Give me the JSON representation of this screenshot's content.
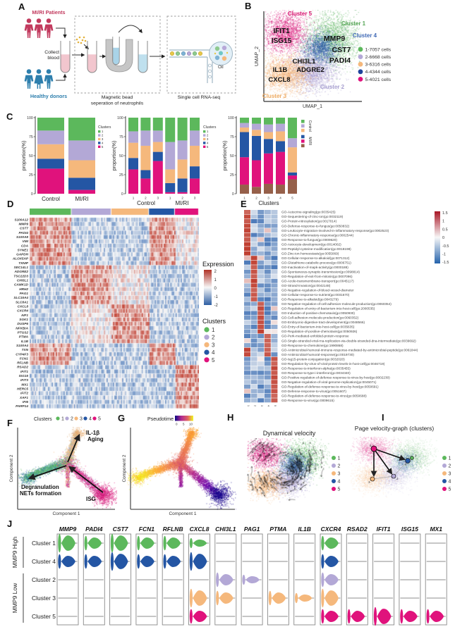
{
  "panel_labels": {
    "A": "A",
    "B": "B",
    "C": "C",
    "D": "D",
    "E": "E",
    "F": "F",
    "G": "G",
    "H": "H",
    "I": "I",
    "J": "J"
  },
  "panelA": {
    "patients": "MI/RI Patients",
    "donors": "Healthy donors",
    "collect1": "Collect",
    "collect2": "blood",
    "box1_label1": "Magnetic bead",
    "box1_label2": "seperation of neutrophils",
    "box2_label": "Single cell RNA-seq",
    "oil": "Oil",
    "patients_color": "#c23a5e",
    "donors_color": "#2e7fad"
  },
  "panelB": {
    "xlabel": "UMAP_1",
    "ylabel": "UMAP_2",
    "cluster_labels": [
      {
        "text": "Cluster 5",
        "color": "#d6156f"
      },
      {
        "text": "Cluster 1",
        "color": "#56a556"
      },
      {
        "text": "Cluster 4",
        "color": "#3f69b5"
      },
      {
        "text": "Cluster 2",
        "color": "#a8a0d0"
      },
      {
        "text": "Cluster 3",
        "color": "#eeac64"
      }
    ],
    "gene_labels": [
      "IFIT1",
      "ISG15",
      "MMP9",
      "CST7",
      "PADI4",
      "CHI3L1",
      "IL1B",
      "ADGRE2",
      "CXCL8"
    ],
    "legend": [
      {
        "label": "1-7057 cells",
        "color": "#5cb85c"
      },
      {
        "label": "2-6668 cells",
        "color": "#b3a8d6"
      },
      {
        "label": "3-6316 cells",
        "color": "#f5b87c"
      },
      {
        "label": "4-4344 cells",
        "color": "#1f439b"
      },
      {
        "label": "5-4021 cells",
        "color": "#e0127c"
      }
    ]
  },
  "chart_data": [
    {
      "id": "panelC-left",
      "type": "bar",
      "stacked": true,
      "ylabel": "proportion(%)",
      "yticks": [
        0,
        25,
        50,
        75,
        100
      ],
      "ylim": [
        0,
        100
      ],
      "categories": [
        "Control",
        "MI/RI"
      ],
      "legend_title": "Clusters",
      "legend_labels": [
        "1",
        "2",
        "3",
        "4",
        "5"
      ],
      "series": [
        {
          "name": "5",
          "color": "#e0127c",
          "values": [
            33,
            5
          ]
        },
        {
          "name": "4",
          "color": "#2456a4",
          "values": [
            13,
            16
          ]
        },
        {
          "name": "3",
          "color": "#f5b87c",
          "values": [
            19,
            23
          ]
        },
        {
          "name": "2",
          "color": "#b3a8d6",
          "values": [
            18,
            26
          ]
        },
        {
          "name": "1",
          "color": "#5cb85c",
          "values": [
            17,
            30
          ]
        }
      ]
    },
    {
      "id": "panelC-middle",
      "type": "bar",
      "stacked": true,
      "ylabel": "proportion(%)",
      "yticks": [
        0,
        25,
        50,
        75,
        100
      ],
      "ylim": [
        0,
        100
      ],
      "categories": [
        "1",
        "2",
        "3",
        "1",
        "2",
        "3"
      ],
      "group_labels": [
        "Control",
        "MI/RI"
      ],
      "legend_title": "Clusters",
      "legend_labels": [
        "1",
        "2",
        "3",
        "4",
        "5"
      ],
      "series": [
        {
          "name": "5",
          "color": "#e0127c",
          "values": [
            32,
            20,
            43,
            2,
            2,
            20
          ]
        },
        {
          "name": "4",
          "color": "#2456a4",
          "values": [
            15,
            11,
            12,
            12,
            18,
            16
          ]
        },
        {
          "name": "3",
          "color": "#f5b87c",
          "values": [
            20,
            32,
            13,
            18,
            25,
            27
          ]
        },
        {
          "name": "2",
          "color": "#b3a8d6",
          "values": [
            15,
            20,
            15,
            36,
            25,
            20
          ]
        },
        {
          "name": "1",
          "color": "#5cb85c",
          "values": [
            18,
            17,
            17,
            32,
            30,
            17
          ]
        }
      ]
    },
    {
      "id": "panelC-right",
      "type": "bar",
      "stacked": true,
      "ylabel": "proportion(%)",
      "yticks": [
        0,
        25,
        50,
        75,
        100
      ],
      "ylim": [
        0,
        100
      ],
      "xlabel": "Clusters",
      "categories": [
        "1",
        "2",
        "3",
        "4",
        "5"
      ],
      "legend_groups": [
        {
          "label": "Control",
          "colors": [
            "#5cb85c",
            "#b3a8d6",
            "#f5b87c"
          ]
        },
        {
          "label": "MI/RI",
          "colors": [
            "#2456a4",
            "#e0127c",
            "#96604a"
          ]
        }
      ],
      "series": [
        {
          "name": "MI/RI-3",
          "color": "#96604a",
          "values": [
            12,
            9,
            13,
            12,
            19
          ]
        },
        {
          "name": "MI/RI-2",
          "color": "#e0127c",
          "values": [
            36,
            35,
            40,
            43,
            5
          ]
        },
        {
          "name": "MI/RI-1",
          "color": "#2456a4",
          "values": [
            33,
            32,
            19,
            14,
            4
          ]
        },
        {
          "name": "Control-3",
          "color": "#f5b87c",
          "values": [
            6,
            8,
            9,
            13,
            33
          ]
        },
        {
          "name": "Control-2",
          "color": "#b3a8d6",
          "values": [
            6,
            8,
            10,
            10,
            12
          ]
        },
        {
          "name": "Control-1",
          "color": "#5cb85c",
          "values": [
            7,
            8,
            9,
            8,
            27
          ]
        }
      ]
    },
    {
      "id": "panelD",
      "type": "heatmap",
      "genes": [
        "S100A12",
        "MMP9",
        "CST7",
        "PADI4",
        "S100A8",
        "VIM",
        "CDA",
        "SYNE1",
        "GAPDH",
        "ALOX5AP",
        "TXNIP",
        "SEC14L1",
        "ADGRE2",
        "TSC22D3",
        "CHI3L1",
        "CAMK1D",
        "HRH2",
        "PAG1",
        "SLC15A4",
        "SLC8A1",
        "CXCL8",
        "CXCR4",
        "AIF1",
        "SGK1",
        "DUSP6",
        "NFKBIA",
        "PTGS2",
        "PTMA",
        "IL1B",
        "S100A4",
        "TXN",
        "CYP4F3",
        "FCN1",
        "RFLNB",
        "RSAD2",
        "IFIT1",
        "ISG15",
        "IFIT3",
        "MX1",
        "HERC5",
        "IFIT2",
        "XAF1",
        "IFI6",
        "PARP14"
      ],
      "cluster_blocks": [
        {
          "cluster": "1",
          "frac": 0.248,
          "color": "#5cb85c"
        },
        {
          "cluster": "2",
          "frac": 0.235,
          "color": "#b3a8d6"
        },
        {
          "cluster": "3",
          "frac": 0.222,
          "color": "#f5b87c"
        },
        {
          "cluster": "4",
          "frac": 0.153,
          "color": "#2456a4"
        },
        {
          "cluster": "5",
          "frac": 0.142,
          "color": "#e0127c"
        }
      ],
      "gene_groups": [
        {
          "range": [
            0,
            10
          ],
          "high": [
            1,
            4
          ],
          "mid": [
            5
          ]
        },
        {
          "range": [
            11,
            19
          ],
          "high": [
            2
          ],
          "mid": [
            3
          ]
        },
        {
          "range": [
            20,
            28
          ],
          "high": [
            3
          ],
          "mid": [
            2
          ]
        },
        {
          "range": [
            29,
            33
          ],
          "high": [
            1,
            4
          ],
          "mid": []
        },
        {
          "range": [
            34,
            43
          ],
          "high": [
            5
          ],
          "mid": []
        }
      ],
      "colorbar": {
        "title": "Expression",
        "ticks": [
          "2",
          "1",
          "0",
          "-1",
          "-2"
        ]
      },
      "legend": {
        "title": "Clusters",
        "labels": [
          "1",
          "2",
          "3",
          "4",
          "5"
        ],
        "colors": [
          "#5cb85c",
          "#b3a8d6",
          "#f5b87c",
          "#2456a4",
          "#e0127c"
        ]
      }
    },
    {
      "id": "panelE",
      "type": "heatmap",
      "columns": [
        "1",
        "2",
        "3",
        "4",
        "5"
      ],
      "colorbar_ticks": [
        "1.5",
        "1",
        "0.5",
        "0",
        "-0.5",
        "-1",
        "-1.5"
      ],
      "rows": [
        {
          "label": "GO-Autocrine-signaling(go:0035425)",
          "high": 1
        },
        {
          "label": "GO-Sequestering-of-zinc-ion(go:0032119)",
          "high": 1
        },
        {
          "label": "GO-Protein-nitrosylation(go:0017014)",
          "high": 1
        },
        {
          "label": "GO-Defense-response-to-fungus(go:0050832)",
          "high": 1
        },
        {
          "label": "GO-Leukocyte-migration-involved-in-inflammatory-response(go:0002523)",
          "high": 1
        },
        {
          "label": "GO-Chronic-inflammatory-response(go:0002544)",
          "high": 1
        },
        {
          "label": "GO-Response-to-fungus(go:0009620)",
          "high": 1
        },
        {
          "label": "GO-Astrocyte-development(go:0014002)",
          "high": 1
        },
        {
          "label": "GO-Peptidyl-cysteine-modification(go:0018198)",
          "high": 1
        },
        {
          "label": "GO-Zinc-ion-homeostasis(go:0055069)",
          "high": 1
        },
        {
          "label": "GO-Cellular-response-to-alkaloid(go:0071312)",
          "high": 2
        },
        {
          "label": "GO-Glutathione-catabolic-process(go:0006751)",
          "high": 2
        },
        {
          "label": "GO-Inactivation-of-mapk-activity(go:0000188)",
          "high": 2
        },
        {
          "label": "GO-Spontaneous-synaptic-transmission(go:0098814)",
          "high": 2
        },
        {
          "label": "GO-Regulation-of-exit-from-mitosis(go:0007096)",
          "high": 2
        },
        {
          "label": "GO-Azole-transmembrane-transport(go:0045117)",
          "high": 2
        },
        {
          "label": "GO-Strand-invasion(go:0042148)",
          "high": 2
        },
        {
          "label": "GO-Negative-regulation-of-blood-vessel-diameter",
          "high": 2
        },
        {
          "label": "GO-Cellular-response-to-nutrient(go:0031670)",
          "high": 2
        },
        {
          "label": "GO-Response-to-alkaloid(go:0043279)",
          "high": 2
        },
        {
          "label": "GO-Negative-regulation-of-cell-adhesion-molecule-production(go:0060354)",
          "high": 3
        },
        {
          "label": "GO-Regulation-of-entry-of-bacterium-into-host-cell(go:2000535)",
          "high": 3
        },
        {
          "label": "GO-Induction-of-positive-chemotaxis(go:0050930)",
          "high": 3
        },
        {
          "label": "GO-Cell-adhesion-molecule-production(go:0060352)",
          "high": 3
        },
        {
          "label": "GO-Embryonic-digestive-tract-development(go:0048566)",
          "high": 3
        },
        {
          "label": "GO-Entry-of-bacterium-into-host-cell(go:0035635)",
          "high": 3
        },
        {
          "label": "GO-Regulation-of-positive-chemotaxis(go:0050926)",
          "high": 3
        },
        {
          "label": "GO-Perk-mediated-unfolded-protein-response",
          "high": 4
        },
        {
          "label": "GO-Single-stranded-viral-rna-replication-via-double-stranded-dna-intermediate(go:0039692)",
          "high": 4
        },
        {
          "label": "GO-Response-to-chemokine(go:1990868)",
          "high": 4
        },
        {
          "label": "GO-Antimicrobial-humoral-immune-response-mediated-by-antimicrobial-peptide(go:0061844)",
          "high": 4,
          "high2": 1
        },
        {
          "label": "GO-Antimicrobial-humoral-response(go:0019730)",
          "high": 4,
          "high2": 1
        },
        {
          "label": "GO-Isg15-protein-conjugation(go:0032020)",
          "high": 5
        },
        {
          "label": "GO-Regulation-by-virus-of-viral-protein-levels-in-host-cell(go:0046719)",
          "high": 5
        },
        {
          "label": "GO-Response-to-interferon-alpha(go:0035455)",
          "high": 5
        },
        {
          "label": "GO-Response-to-type-i-interferon(go:0034340)",
          "high": 5
        },
        {
          "label": "GO-Positive-regulation-of-defense-response-to-virus-by-host(go:0002230)",
          "high": 5
        },
        {
          "label": "GO-Negative-regulation-of-viral-genome-replication(go:0045071)",
          "high": 5
        },
        {
          "label": "GO-Regulation-of-defense-response-to-virus-by-host(go:0050691)",
          "high": 5
        },
        {
          "label": "GO-Defense-response-to-virus(go:0051607)",
          "high": 5
        },
        {
          "label": "GO-Regulation-of-defense-response-to-virus(go:0050688)",
          "high": 5
        },
        {
          "label": "GO-Response-to-virus(go:0009615)",
          "high": 5
        }
      ]
    },
    {
      "id": "panelJ",
      "type": "violin",
      "genes": [
        "MMP9",
        "PADI4",
        "CST7",
        "FCN1",
        "RFLNB",
        "CXCL8",
        "CHI3L1",
        "PAG1",
        "PTMA",
        "IL1B",
        "CXCR4",
        "RSAD2",
        "IFIT1",
        "ISG15",
        "MX1"
      ],
      "rows": [
        {
          "label": "Cluster 1",
          "color": "#5cb85c"
        },
        {
          "label": "Cluster 4",
          "color": "#2456a4"
        },
        {
          "label": "Cluster 2",
          "color": "#b3a8d6"
        },
        {
          "label": "Cluster 3",
          "color": "#f5b87c"
        },
        {
          "label": "Cluster 5",
          "color": "#e0127c"
        }
      ],
      "row_groups": [
        {
          "label": "MMP9 High",
          "rows": [
            0,
            1
          ]
        },
        {
          "label": "MMP9 Low",
          "rows": [
            2,
            3,
            4
          ]
        }
      ],
      "sizes": [
        [
          3,
          2,
          0,
          0,
          0
        ],
        [
          2,
          2,
          0,
          0,
          0
        ],
        [
          3,
          3,
          0,
          0,
          0
        ],
        [
          2,
          2,
          0,
          0,
          0
        ],
        [
          2,
          2,
          0,
          0,
          0
        ],
        [
          1,
          3,
          0,
          3,
          2
        ],
        [
          0,
          0,
          2,
          2,
          0
        ],
        [
          0,
          0,
          1,
          0,
          0
        ],
        [
          0,
          0,
          0,
          2,
          0
        ],
        [
          0,
          0,
          0,
          1,
          0
        ],
        [
          2,
          2,
          2,
          3,
          2
        ],
        [
          0,
          0,
          0,
          0,
          2
        ],
        [
          0,
          0,
          0,
          0,
          3
        ],
        [
          0,
          0,
          0,
          0,
          2
        ],
        [
          0,
          0,
          0,
          0,
          2
        ]
      ]
    }
  ],
  "panelF": {
    "legend_title": "Clusters",
    "legend_items": [
      "1",
      "2",
      "3",
      "4",
      "5"
    ],
    "ann_top1": "IL-1β",
    "ann_top2": "Aging",
    "ann_left1": "Degranulation",
    "ann_left2": "NETs formation",
    "ann_right": "ISG",
    "xlabel": "Component 1",
    "ylabel": "Component 2"
  },
  "panelG": {
    "legend_title": "Pseudotime",
    "ticks": [
      "0",
      "5",
      "10"
    ],
    "xlabel": "Component 1",
    "ylabel": "Component 2"
  },
  "panelH": {
    "title": "Dynamical velocity",
    "legend_items": [
      "1",
      "2",
      "3",
      "4",
      "5"
    ]
  },
  "panelI": {
    "title": "Page velocity-graph (clusters)",
    "legend_items": [
      "1",
      "2",
      "3",
      "4",
      "5"
    ]
  }
}
